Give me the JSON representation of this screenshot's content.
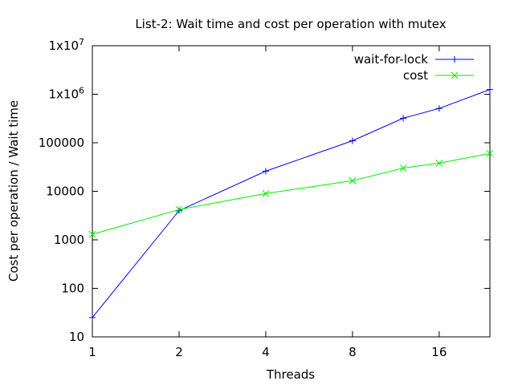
{
  "chart_data": {
    "type": "line",
    "title": "List-2: Wait time and cost per operation with mutex",
    "xlabel": "Threads",
    "ylabel": "Cost per operation / Wait time",
    "xscale": "log2",
    "yscale": "log10",
    "xlim": [
      1,
      24
    ],
    "ylim": [
      10,
      10000000
    ],
    "xticks": [
      {
        "value": 1,
        "label": "1"
      },
      {
        "value": 2,
        "label": "2"
      },
      {
        "value": 4,
        "label": "4"
      },
      {
        "value": 8,
        "label": "8"
      },
      {
        "value": 16,
        "label": "16"
      }
    ],
    "yticks": [
      {
        "value": 10,
        "label": "10"
      },
      {
        "value": 100,
        "label": "100"
      },
      {
        "value": 1000,
        "label": "1000"
      },
      {
        "value": 10000,
        "label": "10000"
      },
      {
        "value": 100000,
        "label": "100000"
      },
      {
        "value": 1000000,
        "label": "1x10",
        "sup": "6"
      },
      {
        "value": 10000000,
        "label": "1x10",
        "sup": "7"
      }
    ],
    "grid": false,
    "legend": "top-right",
    "series": [
      {
        "name": "wait-for-lock",
        "color": "#0000ff",
        "marker": "plus",
        "x": [
          1,
          2,
          4,
          8,
          12,
          16,
          24
        ],
        "y": [
          25,
          4000,
          26000,
          110000,
          320000,
          510000,
          1250000
        ]
      },
      {
        "name": "cost",
        "color": "#00ee00",
        "marker": "cross",
        "x": [
          1,
          2,
          4,
          8,
          12,
          16,
          24
        ],
        "y": [
          1300,
          4200,
          9000,
          16500,
          30000,
          38000,
          60000
        ]
      }
    ]
  }
}
